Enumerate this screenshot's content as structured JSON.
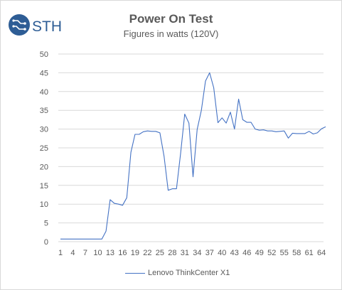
{
  "logo": {
    "text": "STH",
    "icon": "sth-circuit-logo-icon",
    "color": "#2e5d95"
  },
  "chart_data": {
    "type": "line",
    "title": "Power On Test",
    "subtitle": "Figures in watts (120V)",
    "xlabel": "",
    "ylabel": "",
    "ylim": [
      0,
      50
    ],
    "yticks": [
      "0",
      "5",
      "10",
      "15",
      "20",
      "25",
      "30",
      "35",
      "40",
      "45",
      "50"
    ],
    "xticks": [
      "1",
      "4",
      "7",
      "10",
      "13",
      "16",
      "19",
      "22",
      "25",
      "28",
      "31",
      "34",
      "37",
      "40",
      "43",
      "46",
      "49",
      "52",
      "55",
      "58",
      "61",
      "64"
    ],
    "grid": true,
    "legend_position": "bottom",
    "x": [
      1,
      2,
      3,
      4,
      5,
      6,
      7,
      8,
      9,
      10,
      11,
      12,
      13,
      14,
      15,
      16,
      17,
      18,
      19,
      20,
      21,
      22,
      23,
      24,
      25,
      26,
      27,
      28,
      29,
      30,
      31,
      32,
      33,
      34,
      35,
      36,
      37,
      38,
      39,
      40,
      41,
      42,
      43,
      44,
      45,
      46,
      47,
      48,
      49,
      50,
      51,
      52,
      53,
      54,
      55,
      56,
      57,
      58,
      59,
      60,
      61,
      62,
      63,
      64,
      65
    ],
    "series": [
      {
        "name": "Lenovo ThinkCenter X1",
        "color": "#4472c4",
        "values": [
          0.7,
          0.7,
          0.7,
          0.7,
          0.7,
          0.7,
          0.7,
          0.7,
          0.7,
          0.7,
          0.7,
          2.8,
          11.2,
          10.2,
          10.0,
          9.7,
          11.7,
          23.8,
          28.6,
          28.6,
          29.3,
          29.5,
          29.4,
          29.4,
          29.0,
          22.8,
          13.7,
          14.1,
          14.1,
          23.5,
          34.0,
          31.6,
          17.3,
          29.9,
          35.0,
          42.8,
          45.0,
          41.0,
          31.7,
          33.0,
          31.6,
          34.5,
          30.0,
          38.0,
          32.5,
          31.8,
          31.8,
          30.0,
          29.7,
          29.8,
          29.5,
          29.5,
          29.3,
          29.4,
          29.5,
          27.6,
          28.9,
          28.8,
          28.8,
          28.8,
          29.4,
          28.7,
          29.0,
          30.1,
          30.6
        ]
      }
    ]
  }
}
